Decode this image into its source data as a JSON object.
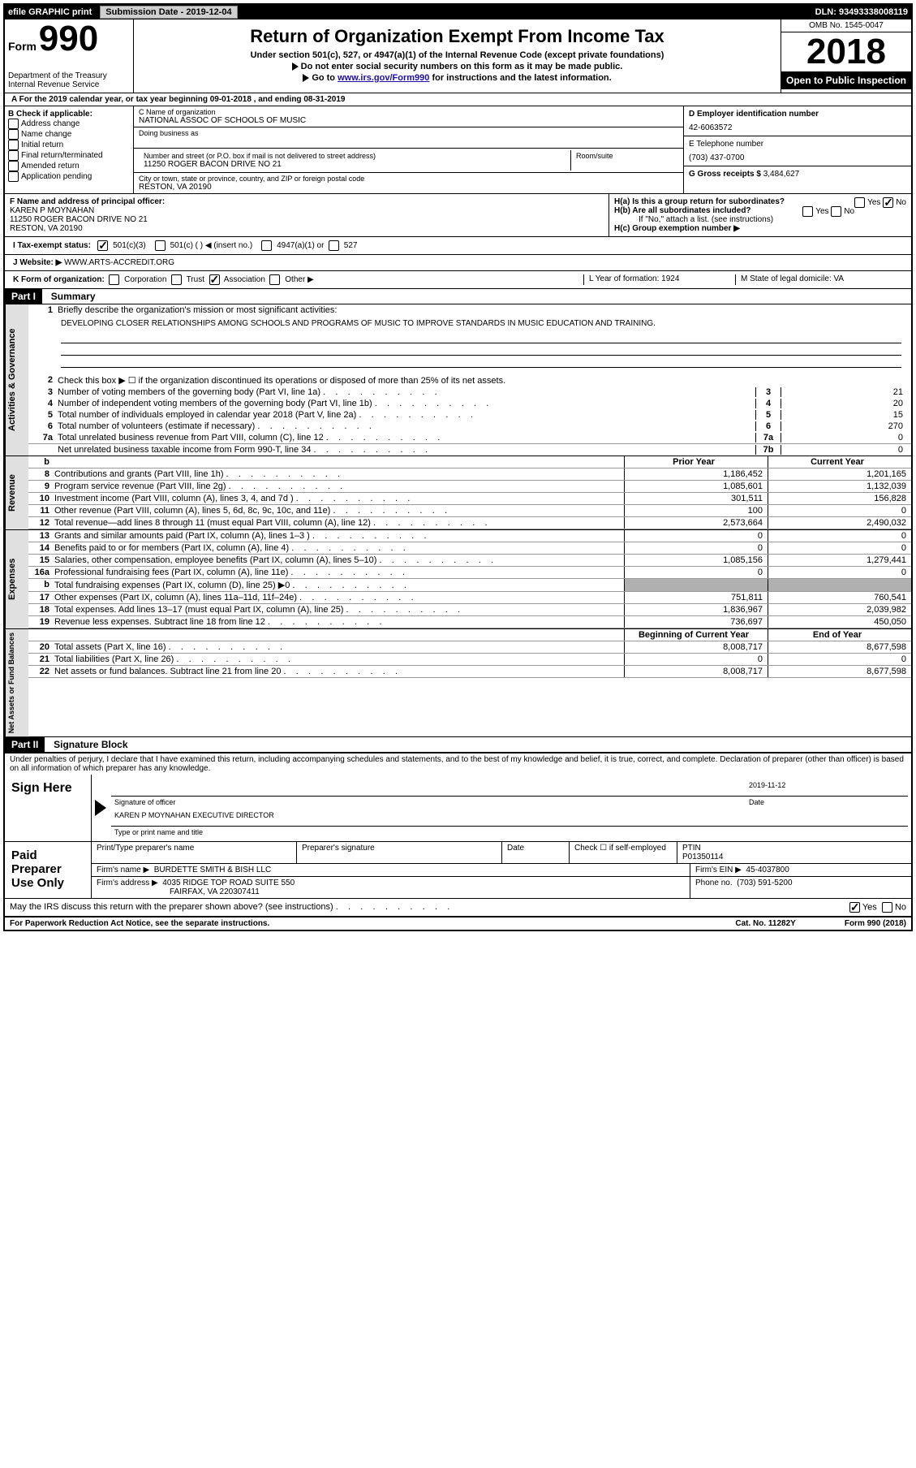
{
  "topbar": {
    "efile": "efile GRAPHIC print",
    "sub_date_label": "Submission Date - 2019-12-04",
    "dln": "DLN: 93493338008119"
  },
  "header": {
    "form_word": "Form",
    "form_no": "990",
    "dept": "Department of the Treasury\nInternal Revenue Service",
    "title": "Return of Organization Exempt From Income Tax",
    "section": "Under section 501(c), 527, or 4947(a)(1) of the Internal Revenue Code (except private foundations)",
    "nossn": "Do not enter social security numbers on this form as it may be made public.",
    "goto_pre": "Go to ",
    "goto_link": "www.irs.gov/Form990",
    "goto_post": " for instructions and the latest information.",
    "omb": "OMB No. 1545-0047",
    "year": "2018",
    "open": "Open to Public Inspection"
  },
  "lineA": "A   For the 2019 calendar year, or tax year beginning 09-01-2018    , and ending 08-31-2019",
  "blockB": {
    "title": "B Check if applicable:",
    "addr": "Address change",
    "name": "Name change",
    "init": "Initial return",
    "final": "Final return/terminated",
    "amend": "Amended return",
    "app": "Application pending"
  },
  "nameblock": {
    "c_label": "C Name of organization",
    "org": "NATIONAL ASSOC OF SCHOOLS OF MUSIC",
    "dba": "Doing business as",
    "street_label": "Number and street (or P.O. box if mail is not delivered to street address)",
    "room_label": "Room/suite",
    "street": "11250 ROGER BACON DRIVE NO 21",
    "city_label": "City or town, state or province, country, and ZIP or foreign postal code",
    "city": "RESTON, VA  20190"
  },
  "rightcol": {
    "d_label": "D Employer identification number",
    "ein": "42-6063572",
    "e_label": "E Telephone number",
    "phone": "(703) 437-0700",
    "g_label": "G Gross receipts $",
    "gross": "3,484,627"
  },
  "fblock": {
    "f_label": "F  Name and address of principal officer:",
    "officer": "KAREN P MOYNAHAN",
    "addr1": "11250 ROGER BACON DRIVE NO 21",
    "addr2": "RESTON, VA  20190",
    "ha": "H(a)  Is this a group return for subordinates?",
    "hb": "H(b)  Are all subordinates included?",
    "hb_note": "If \"No,\" attach a list. (see instructions)",
    "hc": "H(c)  Group exemption number ▶",
    "yes": "Yes",
    "no": "No"
  },
  "status": {
    "i": "I   Tax-exempt status:",
    "c3": "501(c)(3)",
    "c": "501(c) (   ) ◀ (insert no.)",
    "a1": "4947(a)(1) or",
    "s527": "527"
  },
  "website": {
    "j": "J   Website: ▶",
    "url": "WWW.ARTS-ACCREDIT.ORG"
  },
  "formorg": {
    "k": "K Form of organization:",
    "corp": "Corporation",
    "trust": "Trust",
    "assoc": "Association",
    "other": "Other ▶",
    "l": "L Year of formation: 1924",
    "m": "M State of legal domicile: VA"
  },
  "part1": {
    "label": "Part I",
    "title": "Summary",
    "tab_ag": "Activities & Governance",
    "tab_rev": "Revenue",
    "tab_exp": "Expenses",
    "tab_na": "Net Assets or Fund Balances",
    "q1": "Briefly describe the organization's mission or most significant activities:",
    "mission": "DEVELOPING CLOSER RELATIONSHIPS AMONG SCHOOLS AND PROGRAMS OF MUSIC TO IMPROVE STANDARDS IN MUSIC EDUCATION AND TRAINING.",
    "q2": "Check this box ▶ ☐  if the organization discontinued its operations or disposed of more than 25% of its net assets.",
    "q3": "Number of voting members of the governing body (Part VI, line 1a)",
    "v3": "21",
    "q4": "Number of independent voting members of the governing body (Part VI, line 1b)",
    "v4": "20",
    "q5": "Total number of individuals employed in calendar year 2018 (Part V, line 2a)",
    "v5": "15",
    "q6": "Total number of volunteers (estimate if necessary)",
    "v6": "270",
    "q7a": "Total unrelated business revenue from Part VIII, column (C), line 12",
    "v7a": "0",
    "q7b": "Net unrelated business taxable income from Form 990-T, line 34",
    "v7b": "0",
    "prior": "Prior Year",
    "current": "Current Year",
    "lines": [
      {
        "n": "8",
        "t": "Contributions and grants (Part VIII, line 1h)",
        "py": "1,186,452",
        "cy": "1,201,165"
      },
      {
        "n": "9",
        "t": "Program service revenue (Part VIII, line 2g)",
        "py": "1,085,601",
        "cy": "1,132,039"
      },
      {
        "n": "10",
        "t": "Investment income (Part VIII, column (A), lines 3, 4, and 7d )",
        "py": "301,511",
        "cy": "156,828"
      },
      {
        "n": "11",
        "t": "Other revenue (Part VIII, column (A), lines 5, 6d, 8c, 9c, 10c, and 11e)",
        "py": "100",
        "cy": "0"
      },
      {
        "n": "12",
        "t": "Total revenue—add lines 8 through 11 (must equal Part VIII, column (A), line 12)",
        "py": "2,573,664",
        "cy": "2,490,032"
      }
    ],
    "exp_lines": [
      {
        "n": "13",
        "t": "Grants and similar amounts paid (Part IX, column (A), lines 1–3 )",
        "py": "0",
        "cy": "0"
      },
      {
        "n": "14",
        "t": "Benefits paid to or for members (Part IX, column (A), line 4)",
        "py": "0",
        "cy": "0"
      },
      {
        "n": "15",
        "t": "Salaries, other compensation, employee benefits (Part IX, column (A), lines 5–10)",
        "py": "1,085,156",
        "cy": "1,279,441"
      },
      {
        "n": "16a",
        "t": "Professional fundraising fees (Part IX, column (A), line 11e)",
        "py": "0",
        "cy": "0"
      },
      {
        "n": "b",
        "t": "Total fundraising expenses (Part IX, column (D), line 25) ▶0",
        "py": "",
        "cy": "",
        "gray": true
      },
      {
        "n": "17",
        "t": "Other expenses (Part IX, column (A), lines 11a–11d, 11f–24e)",
        "py": "751,811",
        "cy": "760,541"
      },
      {
        "n": "18",
        "t": "Total expenses. Add lines 13–17 (must equal Part IX, column (A), line 25)",
        "py": "1,836,967",
        "cy": "2,039,982"
      },
      {
        "n": "19",
        "t": "Revenue less expenses. Subtract line 18 from line 12",
        "py": "736,697",
        "cy": "450,050"
      }
    ],
    "na_head_py": "Beginning of Current Year",
    "na_head_cy": "End of Year",
    "na_lines": [
      {
        "n": "20",
        "t": "Total assets (Part X, line 16)",
        "py": "8,008,717",
        "cy": "8,677,598"
      },
      {
        "n": "21",
        "t": "Total liabilities (Part X, line 26)",
        "py": "0",
        "cy": "0"
      },
      {
        "n": "22",
        "t": "Net assets or fund balances. Subtract line 21 from line 20",
        "py": "8,008,717",
        "cy": "8,677,598"
      }
    ]
  },
  "part2": {
    "label": "Part II",
    "title": "Signature Block",
    "decl": "Under penalties of perjury, I declare that I have examined this return, including accompanying schedules and statements, and to the best of my knowledge and belief, it is true, correct, and complete. Declaration of preparer (other than officer) is based on all information of which preparer has any knowledge.",
    "sign_here": "Sign Here",
    "sig_officer": "Signature of officer",
    "date_label": "Date",
    "date_val": "2019-11-12",
    "typed": "KAREN P MOYNAHAN  EXECUTIVE DIRECTOR",
    "typed_label": "Type or print name and title",
    "paid": "Paid Preparer Use Only",
    "prep_name_label": "Print/Type preparer's name",
    "prep_sig_label": "Preparer's signature",
    "check_se": "Check ☐ if self-employed",
    "ptin_label": "PTIN",
    "ptin": "P01350114",
    "firm_name_label": "Firm's name    ▶",
    "firm_name": "BURDETTE SMITH & BISH LLC",
    "firm_ein_label": "Firm's EIN ▶",
    "firm_ein": "45-4037800",
    "firm_addr_label": "Firm's address ▶",
    "firm_addr1": "4035 RIDGE TOP ROAD SUITE 550",
    "firm_addr2": "FAIRFAX, VA  220307411",
    "phone_label": "Phone no.",
    "phone": "(703) 591-5200",
    "discuss": "May the IRS discuss this return with the preparer shown above? (see instructions)"
  },
  "footer": {
    "pra": "For Paperwork Reduction Act Notice, see the separate instructions.",
    "cat": "Cat. No. 11282Y",
    "form": "Form 990 (2018)"
  }
}
